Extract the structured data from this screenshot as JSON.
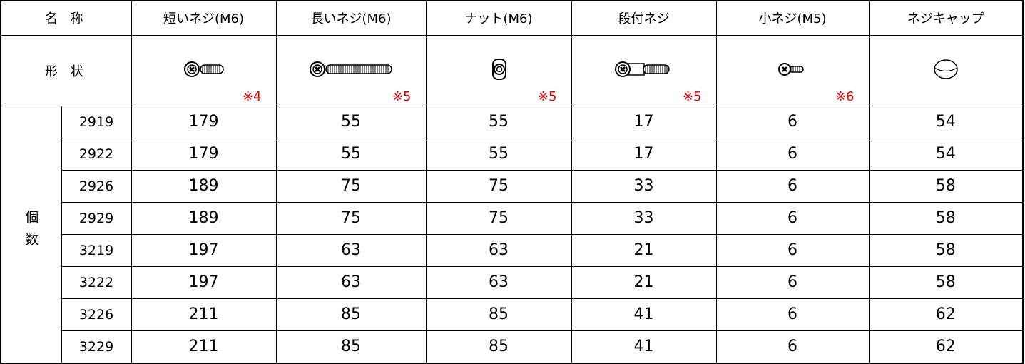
{
  "header": {
    "label": "名 称",
    "columns": [
      "短いネジ(M6)",
      "長いネジ(M6)",
      "ナット(M6)",
      "段付ネジ",
      "小ネジ(M5)",
      "ネジキャップ"
    ]
  },
  "shape": {
    "label": "形 状",
    "notes": [
      "※4",
      "※5",
      "※5",
      "※5",
      "※6"
    ]
  },
  "count_label": "個数",
  "rows": [
    {
      "model": "2919",
      "values": [
        "179",
        "55",
        "55",
        "17",
        "6",
        "54"
      ]
    },
    {
      "model": "2922",
      "values": [
        "179",
        "55",
        "55",
        "17",
        "6",
        "54"
      ]
    },
    {
      "model": "2926",
      "values": [
        "189",
        "75",
        "75",
        "33",
        "6",
        "58"
      ]
    },
    {
      "model": "2929",
      "values": [
        "189",
        "75",
        "75",
        "33",
        "6",
        "58"
      ]
    },
    {
      "model": "3219",
      "values": [
        "197",
        "63",
        "63",
        "21",
        "6",
        "58"
      ]
    },
    {
      "model": "3222",
      "values": [
        "197",
        "63",
        "63",
        "21",
        "6",
        "58"
      ]
    },
    {
      "model": "3226",
      "values": [
        "211",
        "85",
        "85",
        "41",
        "6",
        "62"
      ]
    },
    {
      "model": "3229",
      "values": [
        "211",
        "85",
        "85",
        "41",
        "6",
        "62"
      ]
    }
  ]
}
